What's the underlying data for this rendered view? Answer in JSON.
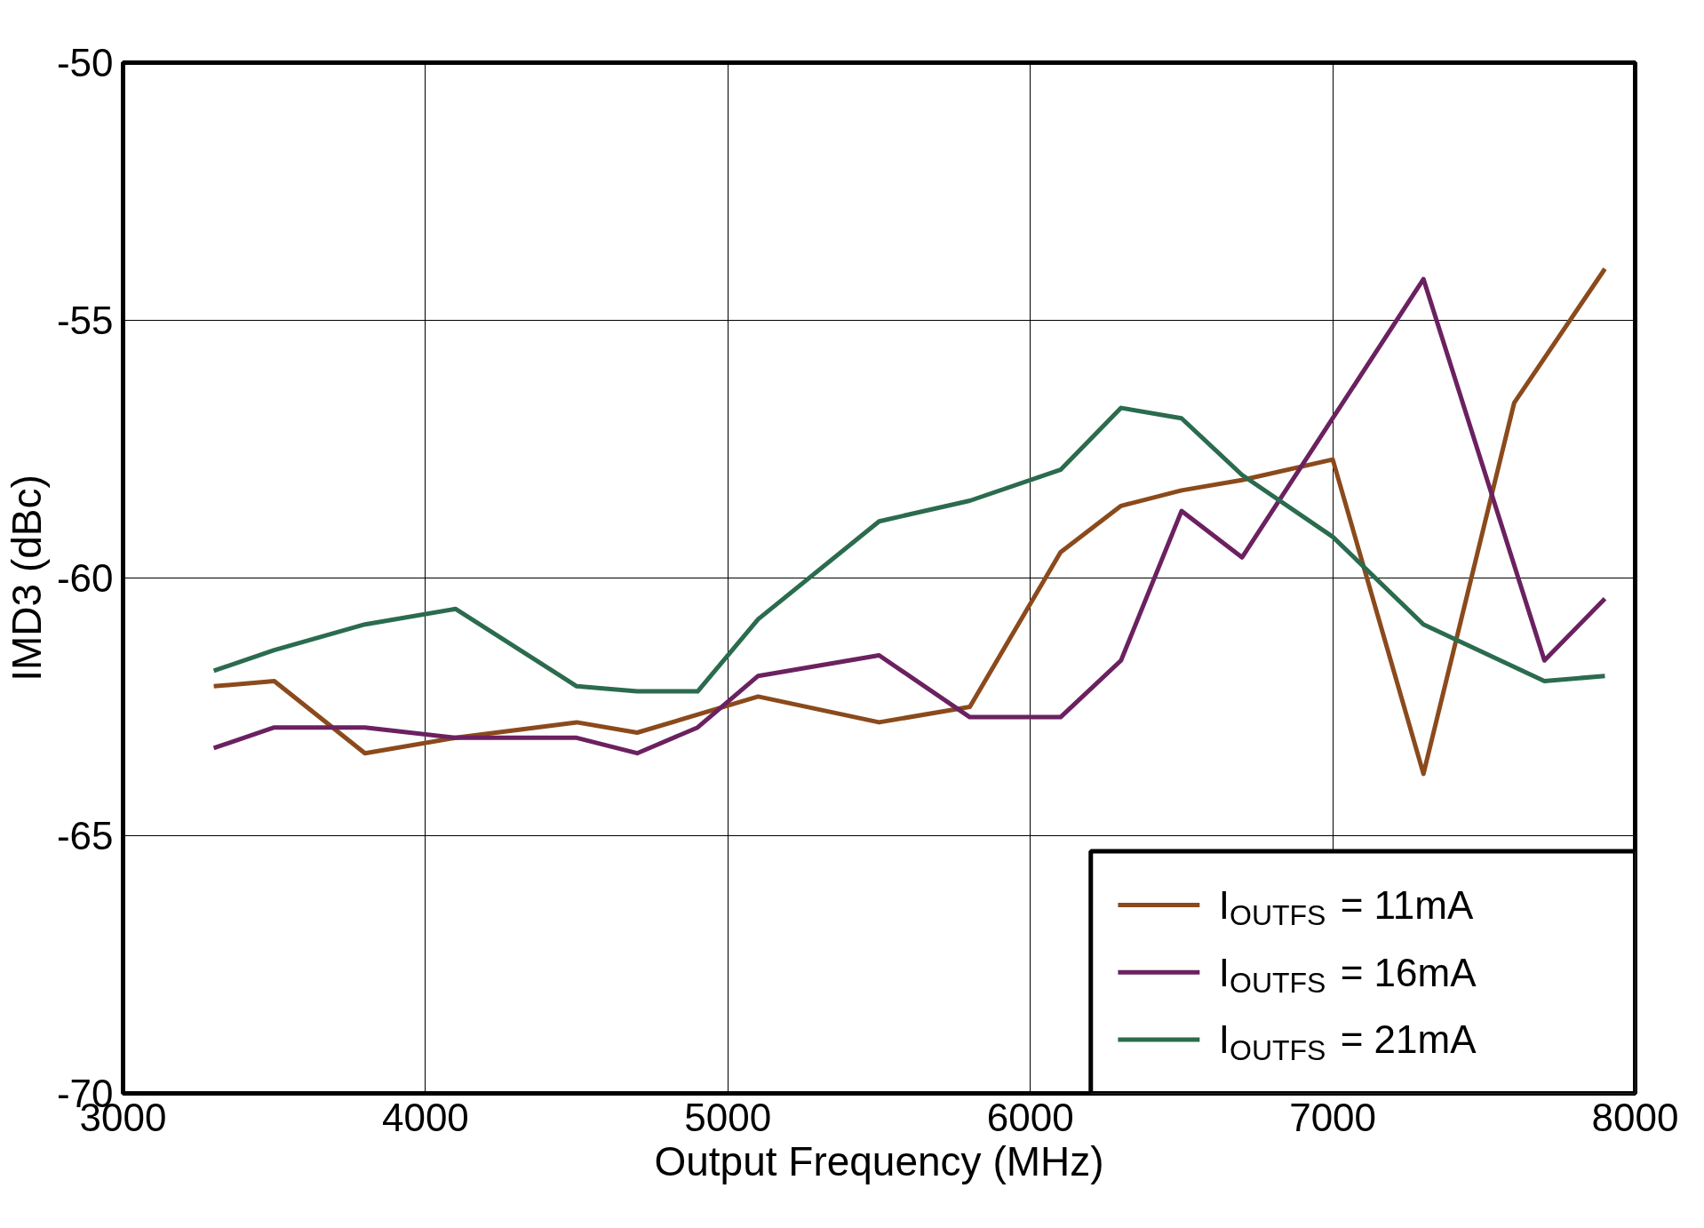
{
  "chart_data": {
    "type": "line",
    "xlabel": "Output Frequency (MHz)",
    "ylabel": "IMD3 (dBc)",
    "xlim": [
      3000,
      8000
    ],
    "xticks": [
      3000,
      4000,
      5000,
      6000,
      7000,
      8000
    ],
    "ylim": [
      -70,
      -50
    ],
    "yticks": [
      -70,
      -65,
      -60,
      -55,
      -50
    ],
    "grid": true,
    "legend": "bottom right",
    "marker": "none",
    "line_style": "solid",
    "series": [
      {
        "name": "I$_{OUTFS}$ = 11mA",
        "color": "#8b4a1c",
        "x": [
          3300,
          3500,
          3800,
          4100,
          4500,
          4700,
          5100,
          5500,
          5800,
          6100,
          6300,
          6500,
          6700,
          7000,
          7300,
          7600,
          7900
        ],
        "values": [
          -62.1,
          -62,
          -63.4,
          -63.1,
          -62.8,
          -63,
          -62.3,
          -62.8,
          -62.5,
          -59.5,
          -58.6,
          -58.3,
          -58.1,
          -57.7,
          -63.8,
          -56.6,
          -54
        ]
      },
      {
        "name": "I$_{OUTFS}$ = 16mA",
        "color": "#6b2160",
        "x": [
          3300,
          3500,
          3800,
          4100,
          4500,
          4700,
          4900,
          5100,
          5500,
          5800,
          6100,
          6300,
          6500,
          6700,
          7000,
          7300,
          7700,
          7900
        ],
        "values": [
          -63.3,
          -62.9,
          -62.9,
          -63.1,
          -63.1,
          -63.4,
          -62.9,
          -61.9,
          -61.5,
          -62.7,
          -62.7,
          -61.6,
          -58.7,
          -59.6,
          -56.9,
          -54.2,
          -61.6,
          -60.4
        ]
      },
      {
        "name": "I$_{OUTFS}$ = 21mA",
        "color": "#2b6b4e",
        "x": [
          3300,
          3500,
          3800,
          4100,
          4500,
          4700,
          4900,
          5100,
          5500,
          5800,
          6100,
          6300,
          6500,
          6700,
          7000,
          7300,
          7700,
          7900
        ],
        "values": [
          -61.8,
          -61.4,
          -60.9,
          -60.6,
          -62.1,
          -62.2,
          -62.2,
          -60.8,
          -58.9,
          -58.5,
          -57.9,
          -56.7,
          -56.9,
          -58,
          -59.2,
          -60.9,
          -62,
          -61.9
        ]
      }
    ]
  }
}
